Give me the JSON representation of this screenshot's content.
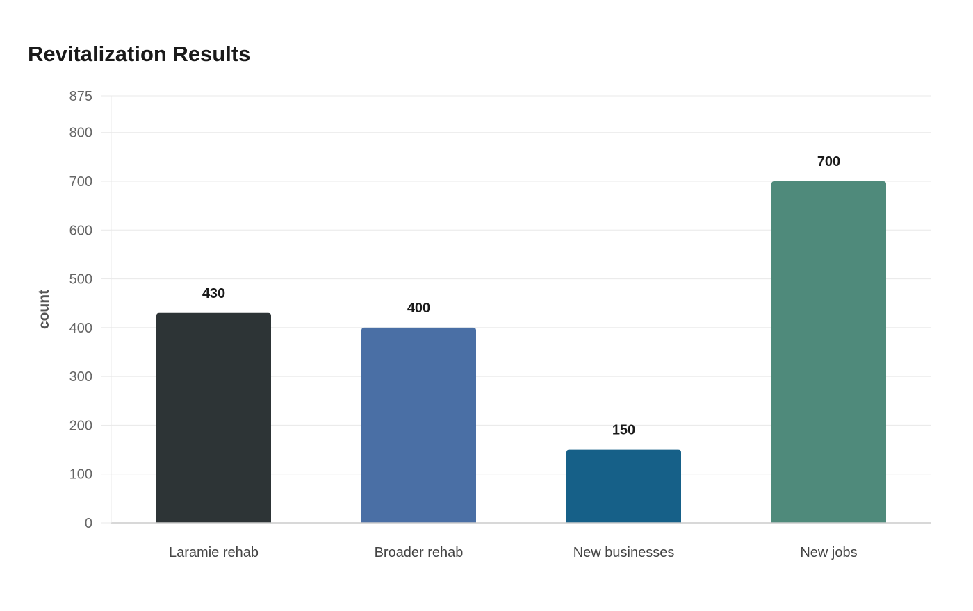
{
  "chart_data": {
    "type": "bar",
    "title": "Revitalization Results",
    "xlabel": "",
    "ylabel": "count",
    "categories": [
      "Laramie rehab",
      "Broader rehab",
      "New businesses",
      "New jobs"
    ],
    "values": [
      430,
      400,
      150,
      700
    ],
    "value_labels": [
      "430",
      "400",
      "150",
      "700"
    ],
    "colors": [
      "#2d3436",
      "#4a6fa5",
      "#166088",
      "#4f8a7b"
    ],
    "ylim": [
      0,
      875
    ],
    "yticks": [
      0,
      100,
      200,
      300,
      400,
      500,
      600,
      700,
      800,
      875
    ],
    "grid": true,
    "legend": "none"
  }
}
